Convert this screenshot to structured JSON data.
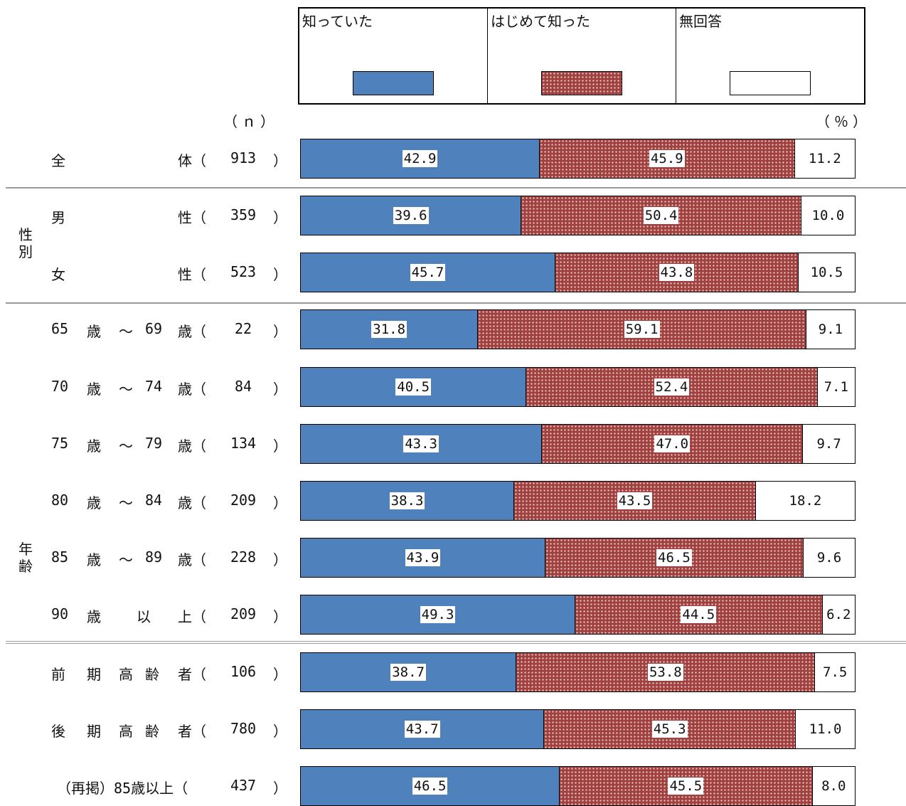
{
  "colors": {
    "knew": "#4f81bd",
    "first_time": "#a0413f",
    "no_answer": "#ffffff"
  },
  "legend": [
    "知っていた",
    "はじめて知った",
    "無回答"
  ],
  "unit_n": "（ｎ）",
  "unit_pct": "（％）",
  "groups": {
    "sex": "性別",
    "age": "年齢"
  },
  "chart_data": {
    "type": "bar",
    "orientation": "horizontal-stacked-100",
    "series_names": [
      "知っていた",
      "はじめて知った",
      "無回答"
    ],
    "rows": [
      {
        "label": [
          "全",
          "体（"
        ],
        "n": "913",
        "values": [
          42.9,
          45.9,
          11.2
        ]
      },
      {
        "label": [
          "男",
          "性（"
        ],
        "n": "359",
        "values": [
          39.6,
          50.4,
          10.0
        ]
      },
      {
        "label": [
          "女",
          "性（"
        ],
        "n": "523",
        "values": [
          45.7,
          43.8,
          10.5
        ]
      },
      {
        "label": [
          "65",
          "歳",
          "～",
          "69",
          "歳（"
        ],
        "n": "22",
        "values": [
          31.8,
          59.1,
          9.1
        ]
      },
      {
        "label": [
          "70",
          "歳",
          "～",
          "74",
          "歳（"
        ],
        "n": "84",
        "values": [
          40.5,
          52.4,
          7.1
        ]
      },
      {
        "label": [
          "75",
          "歳",
          "～",
          "79",
          "歳（"
        ],
        "n": "134",
        "values": [
          43.3,
          47.0,
          9.7
        ]
      },
      {
        "label": [
          "80",
          "歳",
          "～",
          "84",
          "歳（"
        ],
        "n": "209",
        "values": [
          38.3,
          43.5,
          18.2
        ]
      },
      {
        "label": [
          "85",
          "歳",
          "～",
          "89",
          "歳（"
        ],
        "n": "228",
        "values": [
          43.9,
          46.5,
          9.6
        ]
      },
      {
        "label": [
          "90",
          "歳",
          "以",
          "上（"
        ],
        "n": "209",
        "values": [
          49.3,
          44.5,
          6.2
        ]
      },
      {
        "label": [
          "前",
          "期",
          "高",
          "齢",
          "者（"
        ],
        "n": "106",
        "values": [
          38.7,
          53.8,
          7.5
        ]
      },
      {
        "label": [
          "後",
          "期",
          "高",
          "齢",
          "者（"
        ],
        "n": "780",
        "values": [
          43.7,
          45.3,
          11.0
        ]
      },
      {
        "label": [
          "（再掲）85歳以上（"
        ],
        "n": "437",
        "values": [
          46.5,
          45.5,
          8.0
        ]
      }
    ],
    "close_paren": "）"
  }
}
